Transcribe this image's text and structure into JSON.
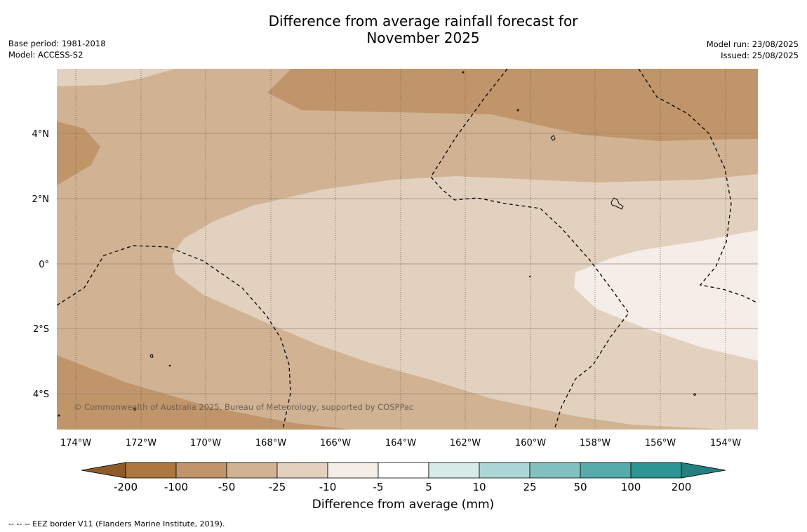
{
  "title_line1": "Difference from average rainfall forecast for",
  "title_line2": "November 2025",
  "base_period": "Base period: 1981-2018",
  "model": "Model: ACCESS-S2",
  "model_run": "Model run: 23/08/2025",
  "issued": "Issued: 25/08/2025",
  "copyright": "© Commonwealth of Australia 2025, Bureau of Meteorology, supported by COSPPac",
  "footer": "--  --  -- EEZ border V11 (Flanders Marine Institute, 2019).",
  "map": {
    "lon_labels": [
      "174°W",
      "172°W",
      "170°W",
      "168°W",
      "166°W",
      "164°W",
      "162°W",
      "160°W",
      "158°W",
      "156°W",
      "154°W"
    ],
    "lat_labels": [
      "4°N",
      "2°N",
      "0°",
      "2°S",
      "4°S"
    ]
  },
  "colorbar": {
    "title": "Difference from average (mm)",
    "tick_labels": [
      "-200",
      "-100",
      "-50",
      "-25",
      "-10",
      "-5",
      "5",
      "10",
      "25",
      "50",
      "100",
      "200"
    ],
    "colors": {
      "under": "#8f5a2a",
      "bins": [
        "#ad7840",
        "#c0956a",
        "#d1b394",
        "#e3d1c0",
        "#f5ede7",
        "#ffffff",
        "#d7ebe9",
        "#abd6d5",
        "#82c1bf",
        "#57abab",
        "#2d9594"
      ],
      "over": "#23807e"
    }
  }
}
